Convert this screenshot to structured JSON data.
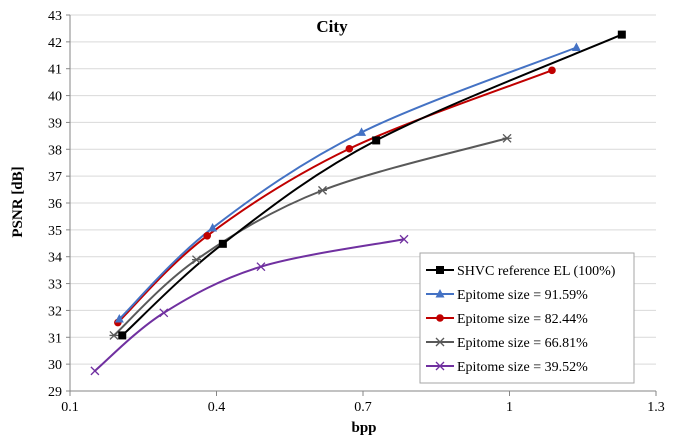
{
  "chart_data": {
    "type": "line",
    "title": "City",
    "xlabel": "bpp",
    "ylabel": "PSNR [dB]",
    "xlim": [
      0.1,
      1.3
    ],
    "ylim": [
      29,
      43
    ],
    "xticks": [
      0.1,
      0.4,
      0.7,
      1,
      1.3
    ],
    "xtick_labels": [
      "0.1",
      "0.4",
      "0.7",
      "1",
      "1.3"
    ],
    "yticks": [
      29,
      30,
      31,
      32,
      33,
      34,
      35,
      36,
      37,
      38,
      39,
      40,
      41,
      42,
      43
    ],
    "ytick_labels": [
      "29",
      "30",
      "31",
      "32",
      "33",
      "34",
      "35",
      "36",
      "37",
      "38",
      "39",
      "40",
      "41",
      "42",
      "43"
    ],
    "grid": "horizontal",
    "legend_position": "bottom-right",
    "series": [
      {
        "name": "SHVC reference EL (100%)",
        "color": "#000000",
        "marker": "square",
        "x": [
          0.207,
          0.413,
          0.727,
          1.23
        ],
        "y": [
          31.07,
          34.48,
          38.33,
          42.27
        ]
      },
      {
        "name": "Epitome size = 91.59%",
        "color": "#4472c4",
        "marker": "triangle",
        "x": [
          0.201,
          0.392,
          0.697,
          1.137
        ],
        "y": [
          31.68,
          35.07,
          38.63,
          41.79
        ]
      },
      {
        "name": "Epitome size = 82.44%",
        "color": "#c00000",
        "marker": "circle",
        "x": [
          0.198,
          0.381,
          0.672,
          1.087
        ],
        "y": [
          31.55,
          34.78,
          38.02,
          40.94
        ]
      },
      {
        "name": "Epitome size = 66.81%",
        "color": "#595959",
        "marker": "star",
        "x": [
          0.19,
          0.359,
          0.617,
          0.995
        ],
        "y": [
          31.07,
          33.89,
          36.47,
          38.41
        ]
      },
      {
        "name": "Epitome size = 39.52%",
        "color": "#7030a0",
        "marker": "x",
        "x": [
          0.151,
          0.292,
          0.491,
          0.784
        ],
        "y": [
          29.75,
          31.91,
          33.63,
          34.65
        ]
      }
    ]
  }
}
